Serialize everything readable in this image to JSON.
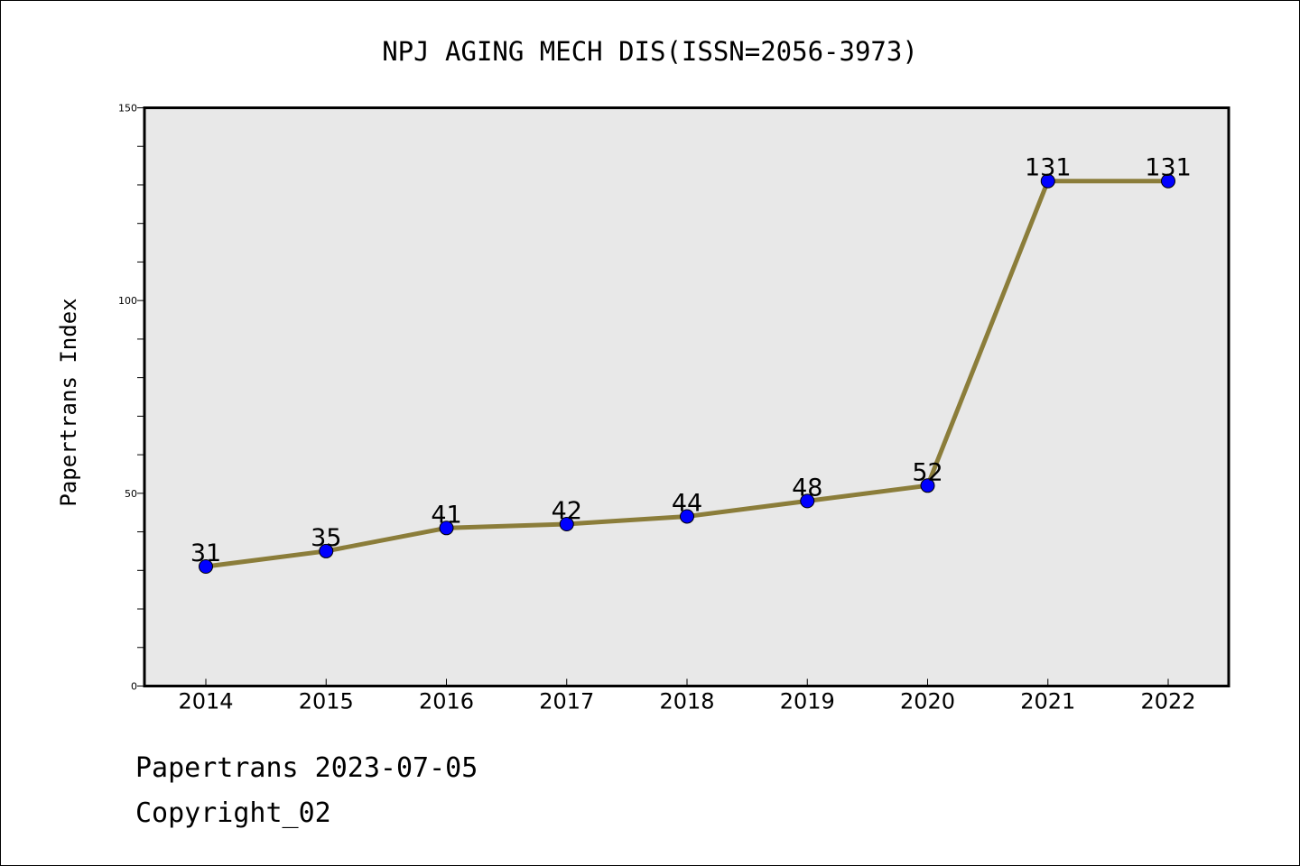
{
  "chart_data": {
    "type": "line",
    "title": "NPJ AGING MECH DIS(ISSN=2056-3973)",
    "xlabel": "",
    "ylabel": "Papertrans Index",
    "categories": [
      "2014",
      "2015",
      "2016",
      "2017",
      "2018",
      "2019",
      "2020",
      "2021",
      "2022"
    ],
    "series": [
      {
        "values": [
          31,
          35,
          41,
          42,
          44,
          48,
          52,
          131,
          131
        ],
        "labels": [
          "31",
          "35",
          "41",
          "42",
          "44",
          "48",
          "52",
          "131",
          "131"
        ]
      }
    ],
    "ylim": [
      0,
      150
    ],
    "yticks": [
      {
        "value": 0,
        "label": "0"
      },
      {
        "value": 50,
        "label": "50"
      },
      {
        "value": 100,
        "label": "100"
      },
      {
        "value": 150,
        "label": "150"
      }
    ],
    "yminor_step": 10,
    "grid": false,
    "colors": {
      "line": "#8b7d3a",
      "marker": "#0000ff",
      "plot_background": "#e8e8e8"
    }
  },
  "footer": {
    "line1": "Papertrans 2023-07-05",
    "line2": "Copyright_02"
  }
}
